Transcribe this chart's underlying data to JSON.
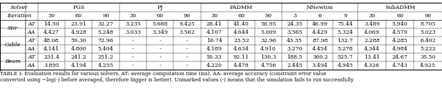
{
  "caption": "TABLE I: Evaluation results for various solvers. AT: average computation time (ms), AA: average accuracy (constraint error value\nconverted using −log(·) before averaged, therefore bigger is better). Unmarked values (-) means that the simulation fails to run successfully",
  "header_row1_labels": [
    "Solver",
    "PGS",
    "PJ",
    "FADMM",
    "NNewton",
    "SubADMM"
  ],
  "header_row1_spans": [
    2,
    3,
    3,
    3,
    3,
    3
  ],
  "header_row2": [
    "Iteration",
    "",
    "30",
    "60",
    "90",
    "30",
    "60",
    "90",
    "30",
    "60",
    "90",
    "3",
    "6",
    "9",
    "30",
    "60",
    "90"
  ],
  "rows": [
    {
      "scene": "Stir",
      "type": "AT",
      "values": [
        "14.50",
        "23.91",
        "32.27",
        "3.235",
        "5.688",
        "9.425",
        "28.41",
        "41.40",
        "56.95",
        "24.35",
        "46.99",
        "75.44",
        "3.489",
        "5.940",
        "8.705"
      ]
    },
    {
      "scene": "",
      "type": "AA",
      "values": [
        "4.427",
        "4.928",
        "5.248",
        "3.033",
        "3.349",
        "3.562",
        "4.107",
        "4.644",
        "5.009",
        "3.565",
        "4.429",
        "5.324",
        "4.069",
        "4.579",
        "5.023"
      ]
    },
    {
      "scene": "Cable",
      "type": "AT",
      "values": [
        "48.08",
        "59.30",
        "72.96",
        "-",
        "-",
        "-",
        "16.74",
        "23.52",
        "32.96",
        "43.35",
        "87.98",
        "132.7",
        "2.288",
        "4.285",
        "6.402"
      ]
    },
    {
      "scene": "",
      "type": "AA",
      "values": [
        "4.141",
        "4.800",
        "5.404",
        "-",
        "-",
        "-",
        "4.189",
        "4.634",
        "4.910",
        "3.270",
        "4.454",
        "5.278",
        "4.344",
        "4.984",
        "5.222"
      ]
    },
    {
      "scene": "Beam",
      "type": "AT",
      "values": [
        "231.4",
        "241.2",
        "251.2",
        "-",
        "-",
        "-",
        "50.33",
        "92.11",
        "130.3",
        "188.5",
        "360.2",
        "525.7",
        "13.41",
        "24.67",
        "35.50"
      ]
    },
    {
      "scene": "",
      "type": "AA",
      "values": [
        "3.895",
        "4.194",
        "4.255",
        "-",
        "-",
        "-",
        "4.220",
        "4.478",
        "4.756",
        "2.445",
        "3.494",
        "4.945",
        "4.326",
        "4.743",
        "4.925"
      ]
    }
  ],
  "font_size": 5.8,
  "caption_font_size": 5.2,
  "bg_color": "#ffffff"
}
